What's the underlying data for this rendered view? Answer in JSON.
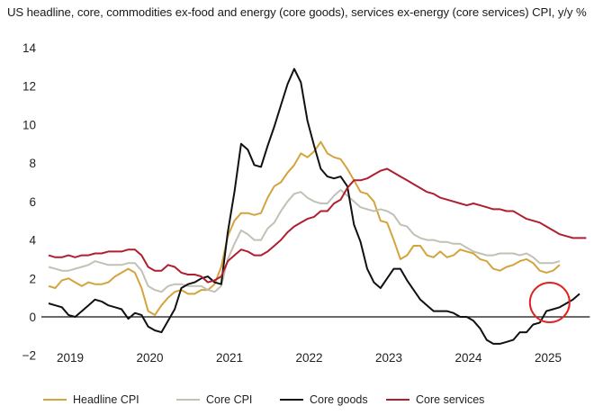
{
  "chart_data": {
    "type": "line",
    "title": "US headline, core, commodities ex-food and energy (core goods), services ex-energy (core services) CPI, y/y %",
    "xlabel": "",
    "ylabel": "",
    "x_start": "2019-01",
    "x_frequency": "monthly",
    "x_tick_labels": [
      "2019",
      "2020",
      "2021",
      "2022",
      "2023",
      "2024",
      "2025"
    ],
    "y_tick_labels": [
      "−2",
      "0",
      "2",
      "4",
      "6",
      "8",
      "10",
      "12",
      "14"
    ],
    "y_ticks": [
      -2,
      0,
      2,
      4,
      6,
      8,
      10,
      12,
      14
    ],
    "ylim": [
      -2,
      14
    ],
    "grid": false,
    "zero_line": true,
    "legend_position": "bottom",
    "annotation": {
      "type": "circle",
      "color": "#e02424",
      "highlights": "Core goods turning positive in 2025",
      "x_month_index": 75.5,
      "y_value": 0.75
    },
    "series": [
      {
        "name": "Headline CPI",
        "color": "#d4a43c",
        "values": [
          1.6,
          1.5,
          1.9,
          2.0,
          1.8,
          1.6,
          1.8,
          1.7,
          1.7,
          1.8,
          2.1,
          2.3,
          2.5,
          2.3,
          1.5,
          0.3,
          0.1,
          0.6,
          1.0,
          1.3,
          1.4,
          1.2,
          1.2,
          1.4,
          1.4,
          1.7,
          2.6,
          4.2,
          5.0,
          5.4,
          5.4,
          5.3,
          5.4,
          6.2,
          6.8,
          7.0,
          7.5,
          7.9,
          8.5,
          8.3,
          8.6,
          9.1,
          8.5,
          8.3,
          8.2,
          7.7,
          7.1,
          6.5,
          6.4,
          6.0,
          5.0,
          4.9,
          4.0,
          3.0,
          3.2,
          3.7,
          3.7,
          3.2,
          3.1,
          3.4,
          3.1,
          3.2,
          3.5,
          3.4,
          3.3,
          3.0,
          2.9,
          2.5,
          2.4,
          2.6,
          2.7,
          2.9,
          3.0,
          2.8,
          2.4,
          2.3,
          2.4,
          2.7
        ]
      },
      {
        "name": "Core CPI",
        "color": "#c2c1b5",
        "values": [
          2.6,
          2.5,
          2.4,
          2.4,
          2.5,
          2.6,
          2.7,
          2.9,
          2.8,
          2.7,
          2.7,
          2.7,
          2.8,
          2.8,
          2.4,
          1.6,
          1.4,
          1.3,
          1.6,
          1.7,
          1.7,
          1.6,
          1.6,
          1.6,
          1.4,
          1.3,
          1.6,
          3.0,
          3.8,
          4.5,
          4.3,
          4.0,
          4.0,
          4.6,
          4.9,
          5.5,
          6.0,
          6.4,
          6.5,
          6.2,
          6.0,
          5.9,
          5.9,
          6.3,
          6.6,
          6.3,
          6.0,
          5.7,
          5.6,
          5.5,
          5.6,
          5.5,
          5.3,
          4.8,
          4.7,
          4.3,
          4.1,
          4.0,
          4.0,
          3.9,
          3.9,
          3.8,
          3.8,
          3.6,
          3.4,
          3.3,
          3.2,
          3.2,
          3.3,
          3.3,
          3.3,
          3.2,
          3.3,
          3.1,
          2.8,
          2.8,
          2.8,
          2.9
        ]
      },
      {
        "name": "Core goods",
        "color": "#111111",
        "values": [
          0.7,
          0.6,
          0.5,
          0.1,
          0.0,
          0.3,
          0.6,
          0.9,
          0.8,
          0.6,
          0.5,
          0.4,
          -0.1,
          0.2,
          0.1,
          -0.5,
          -0.7,
          -0.8,
          -0.2,
          0.4,
          1.5,
          1.7,
          1.8,
          2.0,
          2.1,
          1.8,
          1.7,
          4.4,
          6.5,
          9.0,
          8.7,
          7.9,
          7.8,
          8.9,
          9.9,
          11.0,
          12.1,
          12.9,
          12.2,
          10.2,
          8.9,
          7.7,
          7.3,
          7.2,
          7.3,
          6.8,
          4.8,
          3.9,
          2.5,
          1.8,
          1.5,
          2.0,
          2.5,
          2.5,
          1.9,
          1.4,
          0.9,
          0.6,
          0.3,
          0.3,
          0.3,
          0.2,
          0.0,
          0.0,
          -0.2,
          -0.6,
          -1.2,
          -1.4,
          -1.4,
          -1.3,
          -1.2,
          -0.8,
          -0.8,
          -0.4,
          -0.3,
          0.3,
          0.4,
          0.5,
          0.7,
          0.9,
          1.2
        ]
      },
      {
        "name": "Core services",
        "color": "#b01f2f",
        "values": [
          3.2,
          3.1,
          3.1,
          3.2,
          3.1,
          3.2,
          3.2,
          3.3,
          3.3,
          3.4,
          3.4,
          3.4,
          3.5,
          3.5,
          3.2,
          2.6,
          2.4,
          2.4,
          2.7,
          2.6,
          2.3,
          2.2,
          2.2,
          2.1,
          1.8,
          1.9,
          2.1,
          2.9,
          3.2,
          3.5,
          3.4,
          3.2,
          3.2,
          3.4,
          3.7,
          4.0,
          4.4,
          4.7,
          4.9,
          5.1,
          5.2,
          5.5,
          5.5,
          5.9,
          6.1,
          6.7,
          7.1,
          7.1,
          7.2,
          7.4,
          7.6,
          7.7,
          7.5,
          7.3,
          7.1,
          6.9,
          6.7,
          6.5,
          6.4,
          6.2,
          6.1,
          6.0,
          5.9,
          5.8,
          5.9,
          5.8,
          5.7,
          5.6,
          5.6,
          5.5,
          5.5,
          5.3,
          5.1,
          5.0,
          4.9,
          4.7,
          4.5,
          4.3,
          4.2,
          4.1,
          4.1,
          4.1
        ]
      }
    ]
  },
  "legend": {
    "items": [
      {
        "label": "Headline CPI",
        "color": "#d4a43c"
      },
      {
        "label": "Core CPI",
        "color": "#c2c1b5"
      },
      {
        "label": "Core goods",
        "color": "#111111"
      },
      {
        "label": "Core services",
        "color": "#b01f2f"
      }
    ]
  }
}
